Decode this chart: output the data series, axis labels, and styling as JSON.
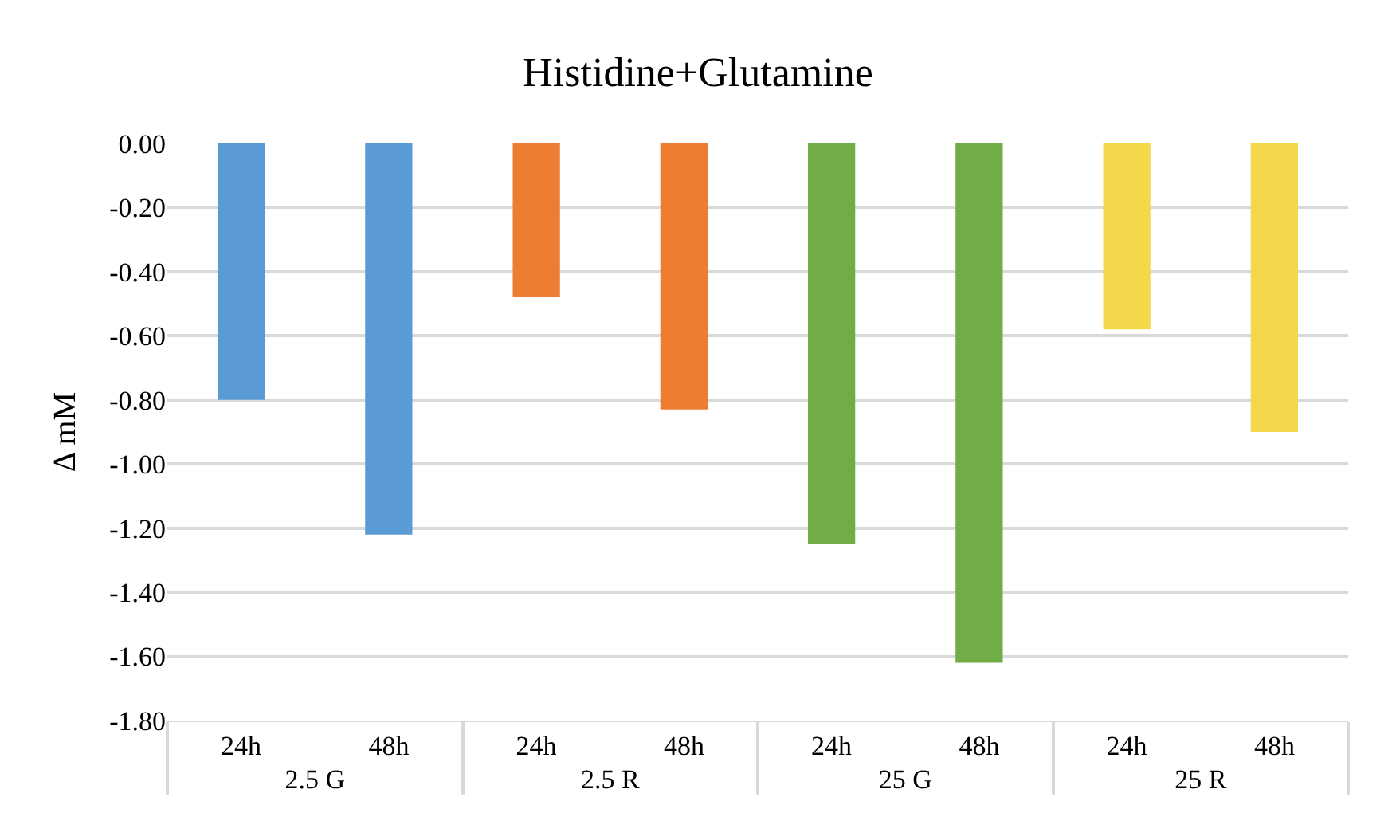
{
  "chart_data": {
    "type": "bar",
    "title": "Histidine+Glutamine",
    "ylabel": "Δ mM",
    "categories": [
      "24h",
      "48h",
      "24h",
      "48h",
      "24h",
      "48h",
      "24h",
      "48h"
    ],
    "annotations": [
      "2.5 G",
      "2.5 R",
      "25 G",
      "25 R"
    ],
    "values": [
      -0.8,
      -1.22,
      -0.48,
      -0.83,
      -1.25,
      -1.62,
      -0.58,
      -0.9
    ],
    "colors": [
      "#5b9bd5",
      "#5b9bd5",
      "#ed7d31",
      "#ed7d31",
      "#70ad47",
      "#70ad47",
      "#f2d84a",
      "#f2d84a"
    ],
    "ylim": [
      -1.8,
      0
    ],
    "yticks": [
      {
        "value": 0,
        "label": "0.00"
      },
      {
        "value": -0.2,
        "label": "-0.20"
      },
      {
        "value": -0.4,
        "label": "-0.40"
      },
      {
        "value": -0.6,
        "label": "-0.60"
      },
      {
        "value": -0.8,
        "label": "-0.80"
      },
      {
        "value": -1.0,
        "label": "-1.00"
      },
      {
        "value": -1.2,
        "label": "-1.20"
      },
      {
        "value": -1.4,
        "label": "-1.40"
      },
      {
        "value": -1.6,
        "label": "-1.60"
      },
      {
        "value": -1.8,
        "label": "-1.80"
      }
    ],
    "grid": "y"
  }
}
